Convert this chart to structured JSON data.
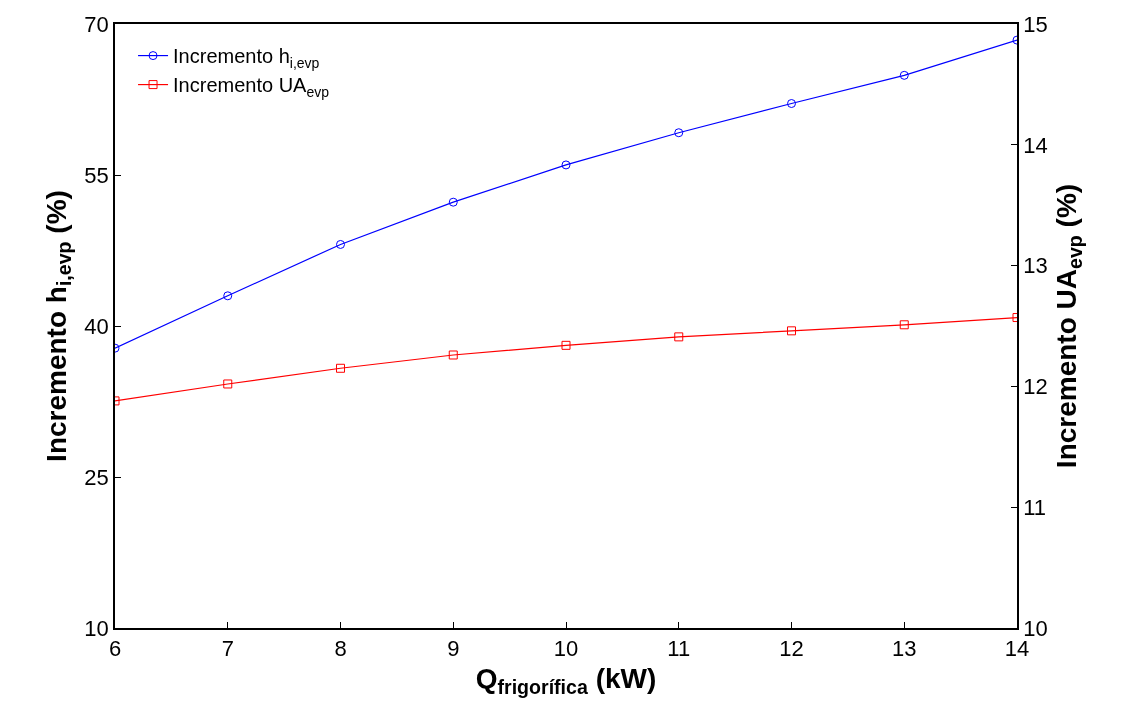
{
  "chart_data": {
    "type": "line",
    "xlabel": "Q$_{frigorífica}$ (kW)",
    "ylabel": "Incremento h$_{i,evp}$ (%)",
    "y2label": "Incremento UA$_{evp}$ (%)",
    "x": [
      6,
      7,
      8,
      9,
      10,
      11,
      12,
      13,
      14
    ],
    "series": [
      {
        "name": "Incremento h$_{i,evp}$",
        "color": "#0000ff",
        "marker": "circle",
        "values": [
          37.8,
          43.0,
          48.1,
          52.3,
          56.0,
          59.2,
          62.1,
          64.9,
          68.4
        ]
      },
      {
        "name": "Incremento UA$_{evp}$",
        "color": "#ff0000",
        "marker": "square",
        "axis": "y2",
        "values": [
          11.88,
          12.02,
          12.15,
          12.26,
          12.34,
          12.41,
          12.46,
          12.51,
          12.57
        ]
      }
    ],
    "xlim": [
      6,
      14
    ],
    "xticks": [
      6,
      7,
      8,
      9,
      10,
      11,
      12,
      13,
      14
    ],
    "ylim": [
      10,
      70
    ],
    "yticks": [
      10,
      25,
      40,
      55,
      70
    ],
    "y2lim": [
      10,
      15
    ],
    "y2ticks": [
      10,
      11,
      12,
      13,
      14,
      15
    ],
    "legend": "top left",
    "line_style": "solid"
  }
}
